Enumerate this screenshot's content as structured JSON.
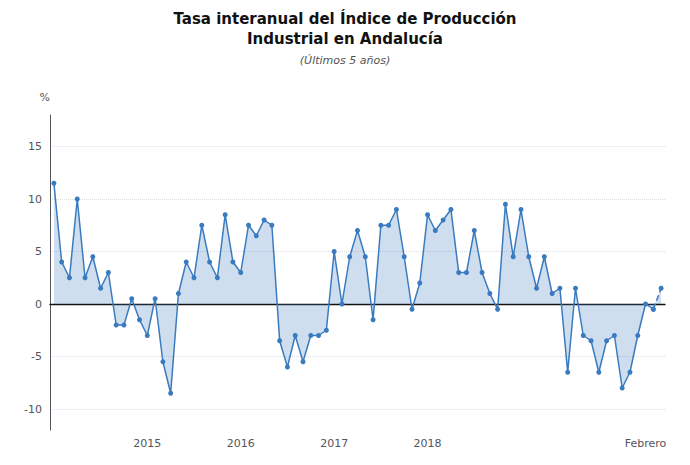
{
  "chart_data": {
    "type": "line",
    "title": "Tasa interanual del Índice de Producción\nIndustrial en Andalucía",
    "subtitle": "(Últimos 5 años)",
    "y_label": "%",
    "categories": [
      null,
      null,
      null,
      null,
      null,
      null,
      null,
      null,
      null,
      null,
      null,
      null,
      "2015",
      null,
      null,
      null,
      null,
      null,
      null,
      null,
      null,
      null,
      null,
      null,
      "2016",
      null,
      null,
      null,
      null,
      null,
      null,
      null,
      null,
      null,
      null,
      null,
      "2017",
      null,
      null,
      null,
      null,
      null,
      null,
      null,
      null,
      null,
      null,
      null,
      "2018",
      null,
      null,
      null,
      null,
      null,
      null,
      null,
      null,
      null,
      null,
      null,
      null,
      null,
      null,
      null,
      null,
      null,
      null,
      null,
      null,
      null,
      null,
      null,
      null,
      null,
      null,
      null,
      "Febrero",
      null,
      null
    ],
    "values": [
      11.5,
      4.0,
      2.5,
      10.0,
      2.5,
      4.5,
      1.5,
      3.0,
      -2.0,
      -2.0,
      0.5,
      -1.5,
      -3.0,
      0.5,
      -5.5,
      -8.5,
      1.0,
      4.0,
      2.5,
      7.5,
      4.0,
      2.5,
      8.5,
      4.0,
      3.0,
      7.5,
      6.5,
      8.0,
      7.5,
      -3.5,
      -6.0,
      -3.0,
      -5.5,
      -3.0,
      -3.0,
      -2.5,
      5.0,
      0.0,
      4.5,
      7.0,
      4.5,
      -1.5,
      7.5,
      7.5,
      9.0,
      4.5,
      -0.5,
      2.0,
      8.5,
      7.0,
      8.0,
      9.0,
      3.0,
      3.0,
      7.0,
      3.0,
      1.0,
      -0.5,
      9.5,
      4.5,
      9.0,
      4.5,
      1.5,
      4.5,
      1.0,
      1.5,
      -6.5,
      1.5,
      -3.0,
      -3.5,
      -6.5,
      -3.5,
      -3.0,
      -8.0,
      -6.5,
      -3.0,
      0.0,
      -0.5,
      1.5
    ],
    "color": "#3a7abf",
    "marker": "circle",
    "line_style": "solid",
    "ylim": [
      -12,
      18
    ],
    "yticks": [
      -10,
      -5,
      0,
      5,
      10,
      15
    ],
    "grid": true
  }
}
